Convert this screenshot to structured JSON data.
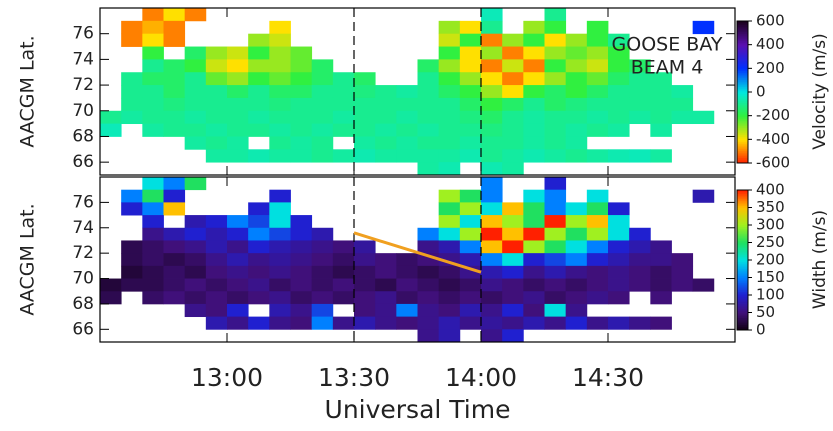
{
  "chart_data": [
    {
      "type": "heatmap",
      "ylabel": "AACGM Lat.",
      "annotations": [
        "GOOSE BAY",
        "BEAM 4"
      ],
      "xlim": [
        750,
        900
      ],
      "ylim": [
        65,
        78
      ],
      "yticks": [
        66,
        68,
        70,
        72,
        74,
        76
      ],
      "markers_x": [
        810,
        840
      ],
      "x": [
        752.5,
        757.5,
        762.5,
        767.5,
        772.5,
        777.5,
        782.5,
        787.5,
        792.5,
        797.5,
        802.5,
        807.5,
        812.5,
        817.5,
        822.5,
        827.5,
        832.5,
        837.5,
        842.5,
        847.5,
        852.5,
        857.5,
        862.5,
        867.5,
        872.5,
        877.5,
        882.5,
        887.5,
        892.5,
        897.5
      ],
      "y": [
        77.5,
        76.5,
        75.5,
        74.5,
        73.5,
        72.5,
        71.5,
        70.5,
        69.5,
        68.5,
        67.5,
        66.5,
        65.5
      ],
      "z": [
        [
          null,
          null,
          -500,
          -400,
          -500,
          null,
          null,
          null,
          null,
          null,
          null,
          null,
          null,
          null,
          null,
          null,
          null,
          null,
          -50,
          null,
          null,
          -100,
          null,
          null,
          null,
          null,
          null,
          null,
          null,
          null
        ],
        [
          null,
          -500,
          -450,
          -500,
          null,
          null,
          null,
          null,
          -400,
          null,
          null,
          null,
          null,
          null,
          null,
          null,
          -300,
          -400,
          -100,
          null,
          -300,
          -200,
          null,
          -200,
          null,
          null,
          null,
          null,
          200,
          null
        ],
        [
          null,
          -500,
          -400,
          -500,
          null,
          null,
          null,
          -300,
          -350,
          null,
          null,
          null,
          null,
          null,
          null,
          null,
          -350,
          -200,
          -500,
          -300,
          -200,
          -400,
          -300,
          -200,
          -100,
          null,
          null,
          null,
          null,
          null
        ],
        [
          null,
          null,
          -200,
          null,
          -150,
          -300,
          -350,
          -200,
          -300,
          -250,
          null,
          null,
          null,
          null,
          null,
          null,
          -200,
          -400,
          -300,
          -500,
          -400,
          -300,
          -250,
          -300,
          -200,
          null,
          null,
          null,
          null,
          null
        ],
        [
          null,
          null,
          -100,
          -150,
          -200,
          -350,
          -400,
          -300,
          -300,
          -250,
          -150,
          null,
          null,
          null,
          null,
          -150,
          -300,
          -400,
          -500,
          -350,
          -500,
          -200,
          -300,
          -350,
          -200,
          -150,
          null,
          null,
          null,
          null
        ],
        [
          null,
          -100,
          -150,
          -150,
          -100,
          -250,
          -300,
          -200,
          -250,
          -200,
          -150,
          -100,
          -150,
          null,
          null,
          -100,
          -200,
          -300,
          -400,
          -500,
          -400,
          -300,
          -200,
          -250,
          -150,
          -100,
          -100,
          null,
          null,
          null
        ],
        [
          null,
          -100,
          -100,
          -150,
          -100,
          -100,
          -150,
          -100,
          -150,
          -150,
          -100,
          -100,
          -120,
          -100,
          -80,
          -100,
          -150,
          -200,
          -300,
          -400,
          -200,
          -150,
          -200,
          -150,
          -100,
          -100,
          -100,
          -80,
          null,
          null
        ],
        [
          null,
          -100,
          -100,
          -120,
          -100,
          -100,
          -100,
          -100,
          -120,
          -100,
          -100,
          -100,
          -100,
          -100,
          -100,
          -100,
          -100,
          -150,
          -200,
          -150,
          -100,
          -150,
          -120,
          -100,
          -100,
          -100,
          -100,
          -100,
          null,
          null
        ],
        [
          -100,
          -80,
          -100,
          -100,
          -80,
          -100,
          -100,
          -80,
          -100,
          -100,
          -100,
          -80,
          -100,
          -100,
          -80,
          -100,
          -100,
          -120,
          -150,
          -100,
          -80,
          -100,
          -100,
          -80,
          -100,
          -80,
          -100,
          -80,
          -80,
          null
        ],
        [
          -50,
          null,
          -80,
          -100,
          -100,
          -80,
          -100,
          -100,
          -80,
          -100,
          -80,
          -100,
          -100,
          -80,
          -100,
          -80,
          -100,
          -100,
          -120,
          -100,
          -80,
          -100,
          -80,
          -100,
          -80,
          null,
          -80,
          null,
          null,
          null
        ],
        [
          null,
          null,
          null,
          null,
          -80,
          -100,
          -80,
          null,
          -100,
          -80,
          -100,
          null,
          -80,
          -100,
          -80,
          -100,
          -100,
          -80,
          -100,
          -100,
          -80,
          -100,
          -80,
          null,
          null,
          null,
          null,
          null,
          null,
          null
        ],
        [
          null,
          null,
          null,
          null,
          null,
          -80,
          -80,
          -60,
          -80,
          -80,
          -100,
          -80,
          -60,
          -80,
          -80,
          -80,
          -80,
          -60,
          -100,
          -80,
          -60,
          -80,
          -100,
          -80,
          -60,
          -50,
          -80,
          null,
          null,
          null
        ],
        [
          null,
          null,
          null,
          null,
          null,
          null,
          null,
          null,
          null,
          null,
          null,
          null,
          null,
          null,
          null,
          -80,
          -60,
          null,
          -60,
          -80,
          null,
          null,
          null,
          null,
          null,
          null,
          null,
          null,
          null,
          null
        ]
      ],
      "colorbar": {
        "label": "Velocity (m/s)",
        "lim": [
          -600,
          600
        ],
        "ticks": [
          600,
          400,
          200,
          0,
          -200,
          -400,
          -600
        ],
        "colors": [
          "#ff2000",
          "#ffe000",
          "#30f040",
          "#00e8e0",
          "#0030ff",
          "#5a10b0",
          "#1a001a"
        ]
      }
    },
    {
      "type": "heatmap",
      "ylabel": "AACGM Lat.",
      "xlabel": "Universal Time",
      "xlim": [
        750,
        900
      ],
      "ylim": [
        65,
        78
      ],
      "yticks": [
        66,
        68,
        70,
        72,
        74,
        76
      ],
      "xticks": [
        {
          "value": 780,
          "label": "13:00"
        },
        {
          "value": 810,
          "label": "13:30"
        },
        {
          "value": 840,
          "label": "14:00"
        },
        {
          "value": 870,
          "label": "14:30"
        }
      ],
      "markers_x": [
        810,
        840
      ],
      "trend_line": {
        "x": [
          810,
          840
        ],
        "y": [
          73.6,
          70.5
        ],
        "color": "#f0a020"
      },
      "x": [
        752.5,
        757.5,
        762.5,
        767.5,
        772.5,
        777.5,
        782.5,
        787.5,
        792.5,
        797.5,
        802.5,
        807.5,
        812.5,
        817.5,
        822.5,
        827.5,
        832.5,
        837.5,
        842.5,
        847.5,
        852.5,
        857.5,
        862.5,
        867.5,
        872.5,
        877.5,
        882.5,
        887.5,
        892.5,
        897.5
      ],
      "y": [
        77.5,
        76.5,
        75.5,
        74.5,
        73.5,
        72.5,
        71.5,
        70.5,
        69.5,
        68.5,
        67.5,
        66.5,
        65.5
      ],
      "z": [
        [
          null,
          null,
          200,
          150,
          250,
          null,
          null,
          null,
          null,
          null,
          null,
          null,
          null,
          null,
          null,
          null,
          null,
          null,
          150,
          null,
          null,
          100,
          null,
          null,
          null,
          null,
          null,
          null,
          null,
          null
        ],
        [
          null,
          150,
          250,
          100,
          null,
          null,
          null,
          null,
          100,
          null,
          null,
          null,
          null,
          null,
          null,
          null,
          300,
          250,
          150,
          null,
          200,
          150,
          null,
          200,
          null,
          null,
          null,
          null,
          80,
          null
        ],
        [
          null,
          100,
          150,
          350,
          null,
          null,
          null,
          100,
          200,
          null,
          null,
          null,
          null,
          null,
          null,
          null,
          250,
          300,
          200,
          350,
          250,
          150,
          200,
          250,
          100,
          null,
          null,
          null,
          null,
          null
        ],
        [
          null,
          null,
          100,
          null,
          80,
          100,
          150,
          120,
          200,
          100,
          null,
          null,
          null,
          null,
          null,
          null,
          300,
          200,
          350,
          300,
          250,
          400,
          300,
          350,
          200,
          null,
          null,
          null,
          null,
          null
        ],
        [
          null,
          null,
          60,
          80,
          100,
          80,
          100,
          150,
          120,
          100,
          80,
          null,
          null,
          null,
          null,
          150,
          200,
          300,
          400,
          350,
          400,
          300,
          250,
          300,
          200,
          100,
          null,
          null,
          null,
          null
        ],
        [
          null,
          30,
          40,
          50,
          60,
          80,
          60,
          100,
          80,
          70,
          60,
          50,
          70,
          null,
          null,
          60,
          80,
          150,
          350,
          400,
          300,
          250,
          200,
          150,
          100,
          80,
          60,
          null,
          null,
          null
        ],
        [
          null,
          30,
          40,
          30,
          40,
          60,
          80,
          60,
          70,
          60,
          50,
          40,
          60,
          50,
          40,
          50,
          60,
          80,
          150,
          200,
          100,
          120,
          150,
          100,
          80,
          60,
          60,
          50,
          null,
          null
        ],
        [
          null,
          20,
          30,
          40,
          30,
          50,
          60,
          50,
          60,
          50,
          40,
          30,
          40,
          50,
          40,
          30,
          40,
          60,
          80,
          100,
          60,
          80,
          60,
          50,
          60,
          50,
          40,
          50,
          null,
          null
        ],
        [
          20,
          30,
          30,
          40,
          50,
          40,
          50,
          60,
          40,
          50,
          40,
          50,
          40,
          30,
          50,
          40,
          30,
          40,
          60,
          50,
          40,
          50,
          40,
          50,
          60,
          50,
          40,
          50,
          40,
          null
        ],
        [
          30,
          null,
          40,
          50,
          40,
          50,
          40,
          50,
          60,
          40,
          50,
          40,
          50,
          60,
          40,
          50,
          40,
          50,
          40,
          50,
          60,
          40,
          50,
          60,
          50,
          null,
          50,
          null,
          null,
          null
        ],
        [
          null,
          null,
          null,
          null,
          60,
          50,
          100,
          null,
          80,
          60,
          120,
          null,
          50,
          60,
          150,
          60,
          50,
          80,
          60,
          100,
          50,
          200,
          60,
          null,
          null,
          null,
          null,
          null,
          null,
          null
        ],
        [
          null,
          null,
          null,
          null,
          null,
          80,
          60,
          100,
          60,
          50,
          150,
          60,
          80,
          60,
          50,
          60,
          80,
          60,
          70,
          60,
          80,
          60,
          100,
          60,
          80,
          60,
          50,
          null,
          null,
          null
        ],
        [
          null,
          null,
          null,
          null,
          null,
          null,
          null,
          null,
          null,
          null,
          null,
          null,
          null,
          null,
          null,
          60,
          80,
          null,
          60,
          100,
          null,
          null,
          null,
          null,
          null,
          null,
          null,
          null,
          null,
          null
        ]
      ],
      "colorbar": {
        "label": "Width (m/s)",
        "lim": [
          0,
          400
        ],
        "ticks": [
          0,
          50,
          100,
          150,
          200,
          250,
          300,
          350,
          400
        ],
        "colors": [
          "#100010",
          "#40107a",
          "#2020d0",
          "#0080ff",
          "#00e0e0",
          "#20e060",
          "#a0f020",
          "#ffc000",
          "#ff2000"
        ]
      }
    }
  ]
}
